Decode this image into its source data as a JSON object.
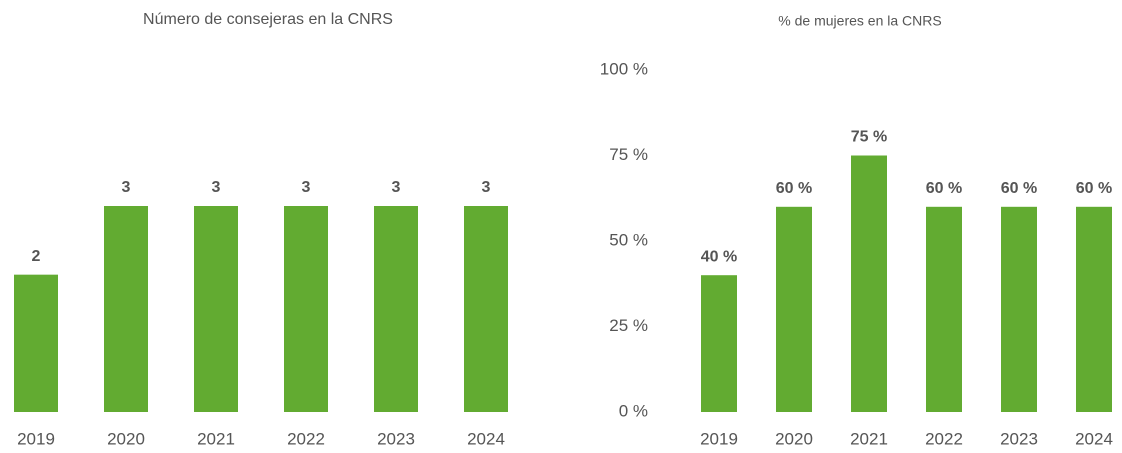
{
  "chart_data": [
    {
      "type": "bar",
      "title": "Número de consejeras en la CNRS",
      "categories": [
        "2019",
        "2020",
        "2021",
        "2022",
        "2023",
        "2024"
      ],
      "values": [
        2,
        3,
        3,
        3,
        3,
        3
      ],
      "color": "#62ab31"
    },
    {
      "type": "bar",
      "title": "% de mujeres en la CNRS",
      "categories": [
        "2019",
        "2020",
        "2021",
        "2022",
        "2023",
        "2024"
      ],
      "values": [
        40,
        60,
        75,
        60,
        60,
        60
      ],
      "value_labels": [
        "40 %",
        "60 %",
        "75 %",
        "60 %",
        "60 %",
        "60 %"
      ],
      "color": "#62ab31",
      "ylim": [
        0,
        100
      ],
      "yticks": [
        {
          "value": 0,
          "label": "0 %"
        },
        {
          "value": 25,
          "label": "25 %"
        },
        {
          "value": 50,
          "label": "50 %"
        },
        {
          "value": 75,
          "label": "75 %"
        },
        {
          "value": 100,
          "label": "100 %"
        }
      ]
    }
  ]
}
